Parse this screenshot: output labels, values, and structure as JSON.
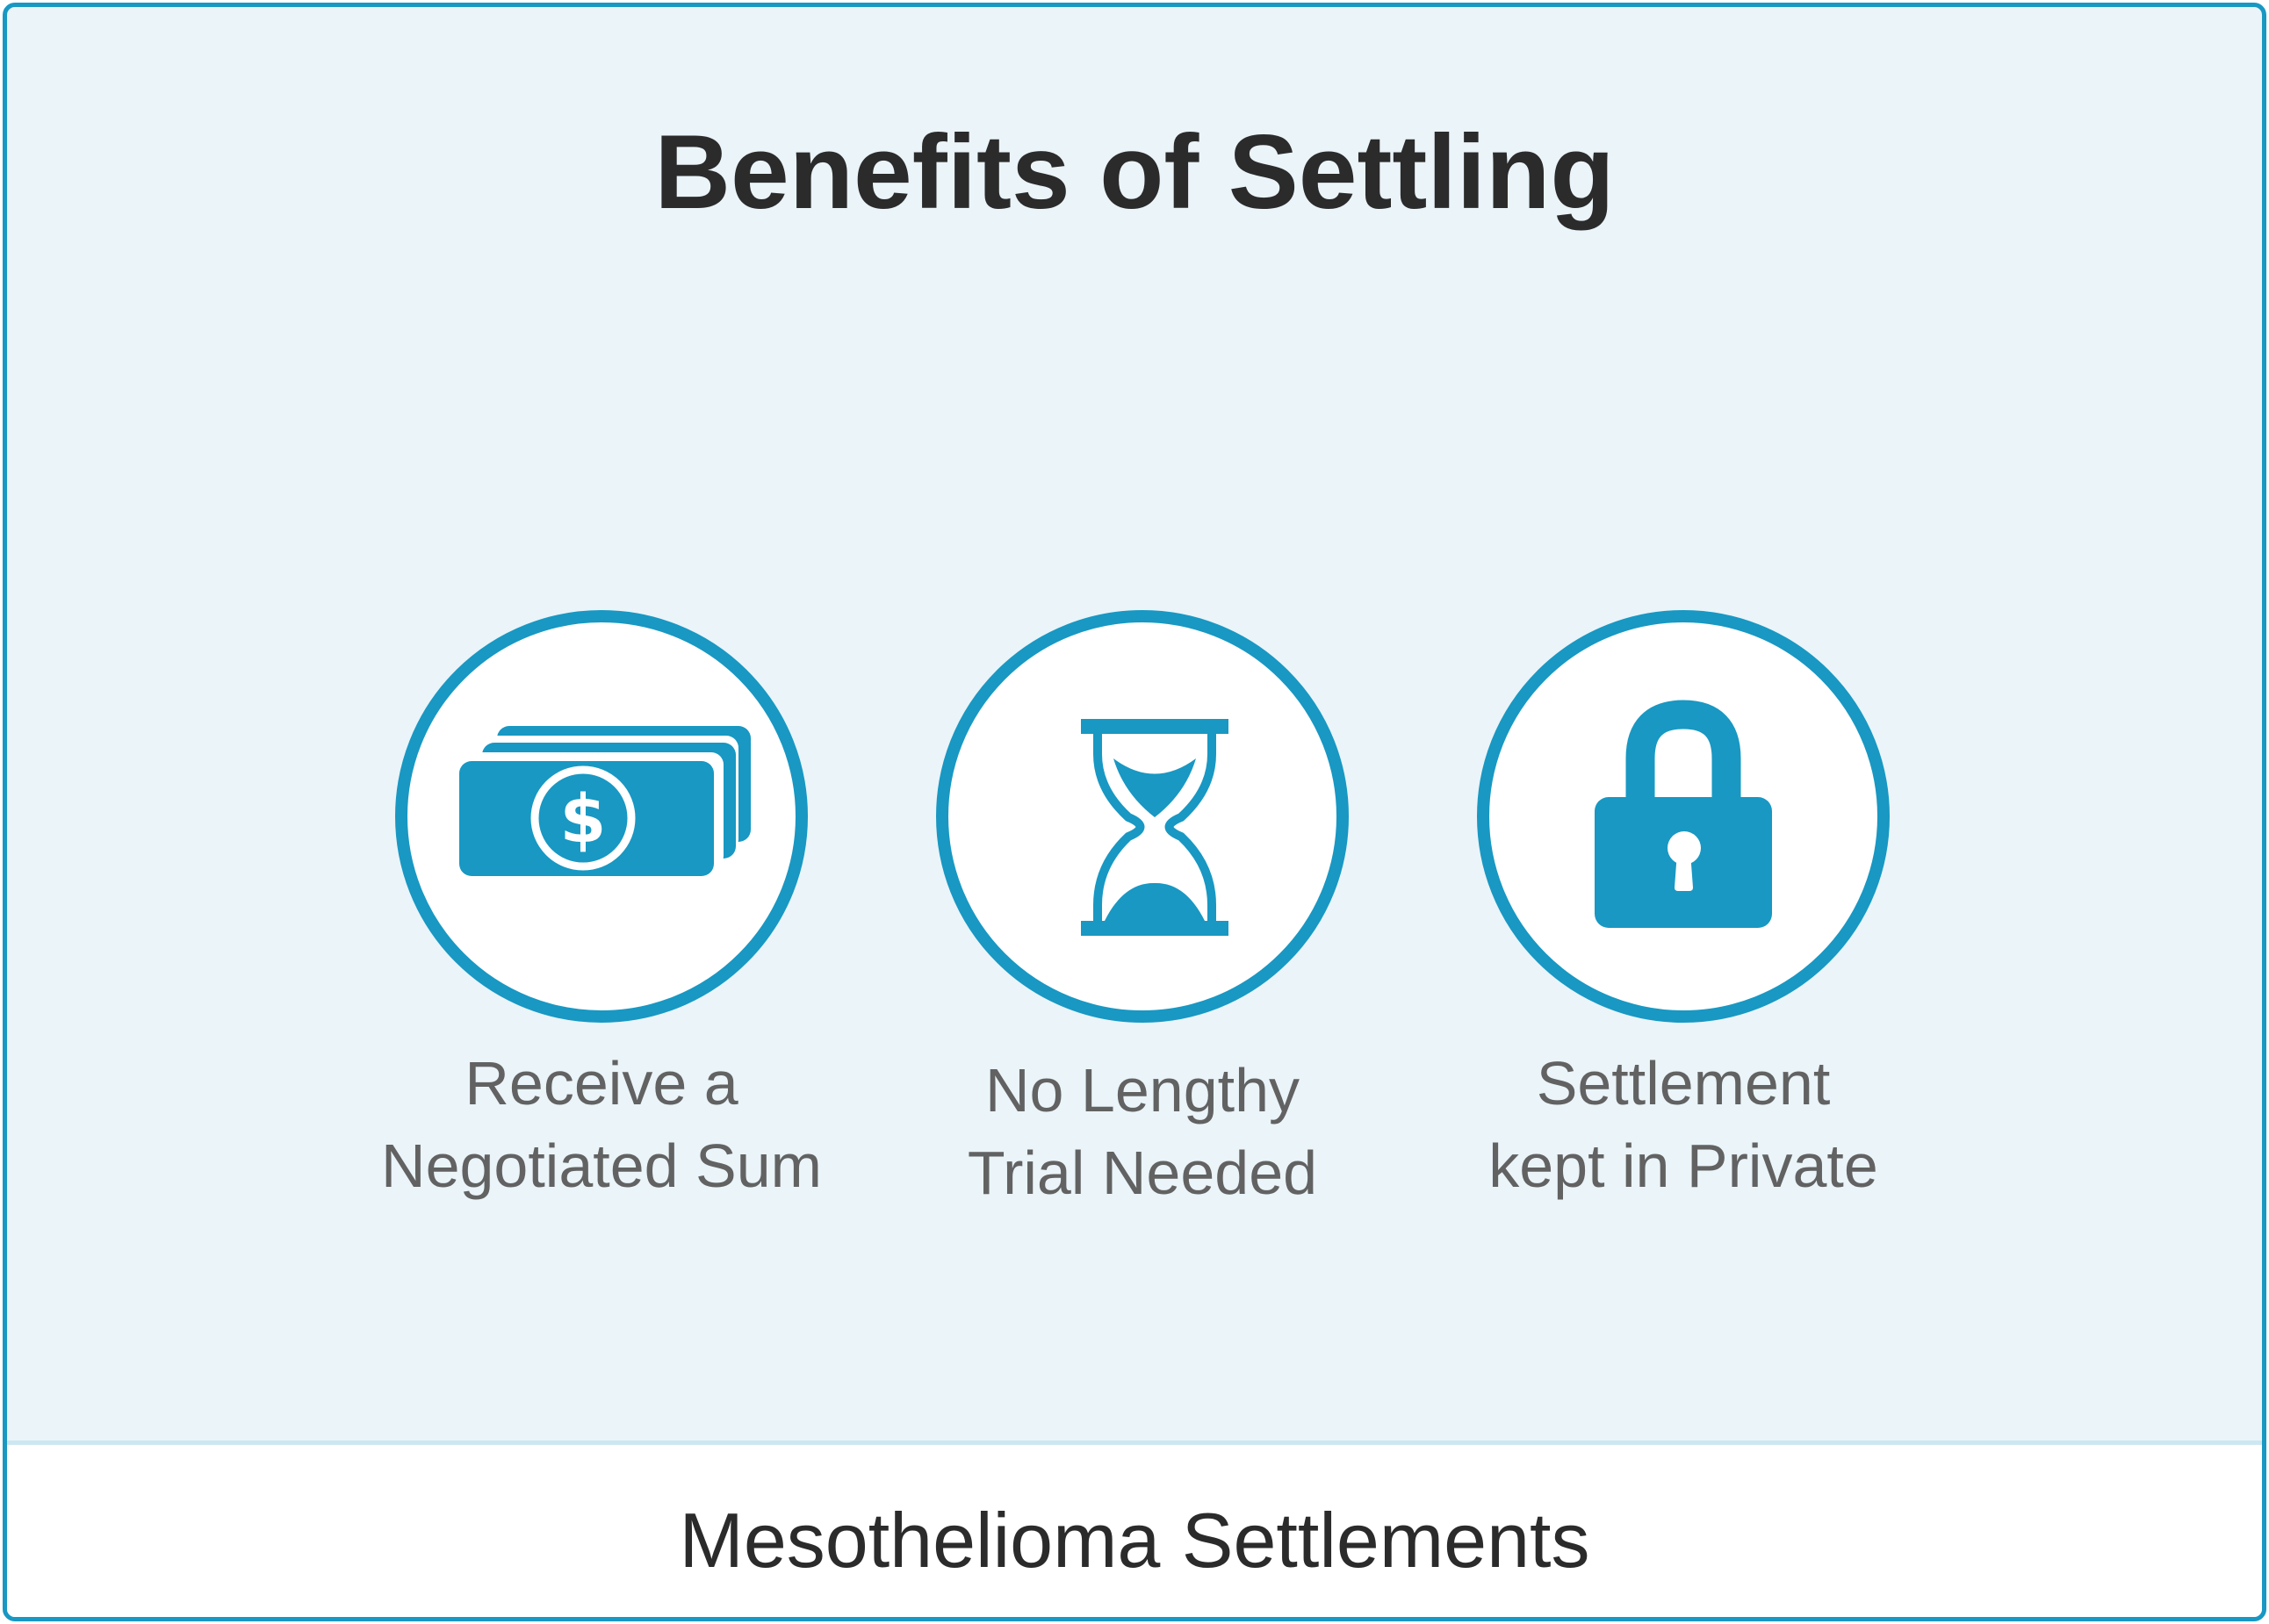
{
  "title": "Benefits of Settling",
  "benefits": [
    {
      "icon": "money-icon",
      "line1": "Receive a",
      "line2": "Negotiated Sum"
    },
    {
      "icon": "hourglass-icon",
      "line1": "No Lengthy",
      "line2": "Trial Needed"
    },
    {
      "icon": "lock-icon",
      "line1": "Settlement",
      "line2": "kept in Private"
    }
  ],
  "footer": "Mesothelioma Settlements",
  "colors": {
    "accent": "#1898c3",
    "background": "#eaf4f9",
    "title_text": "#2b2b2b",
    "label_text": "#626262"
  }
}
